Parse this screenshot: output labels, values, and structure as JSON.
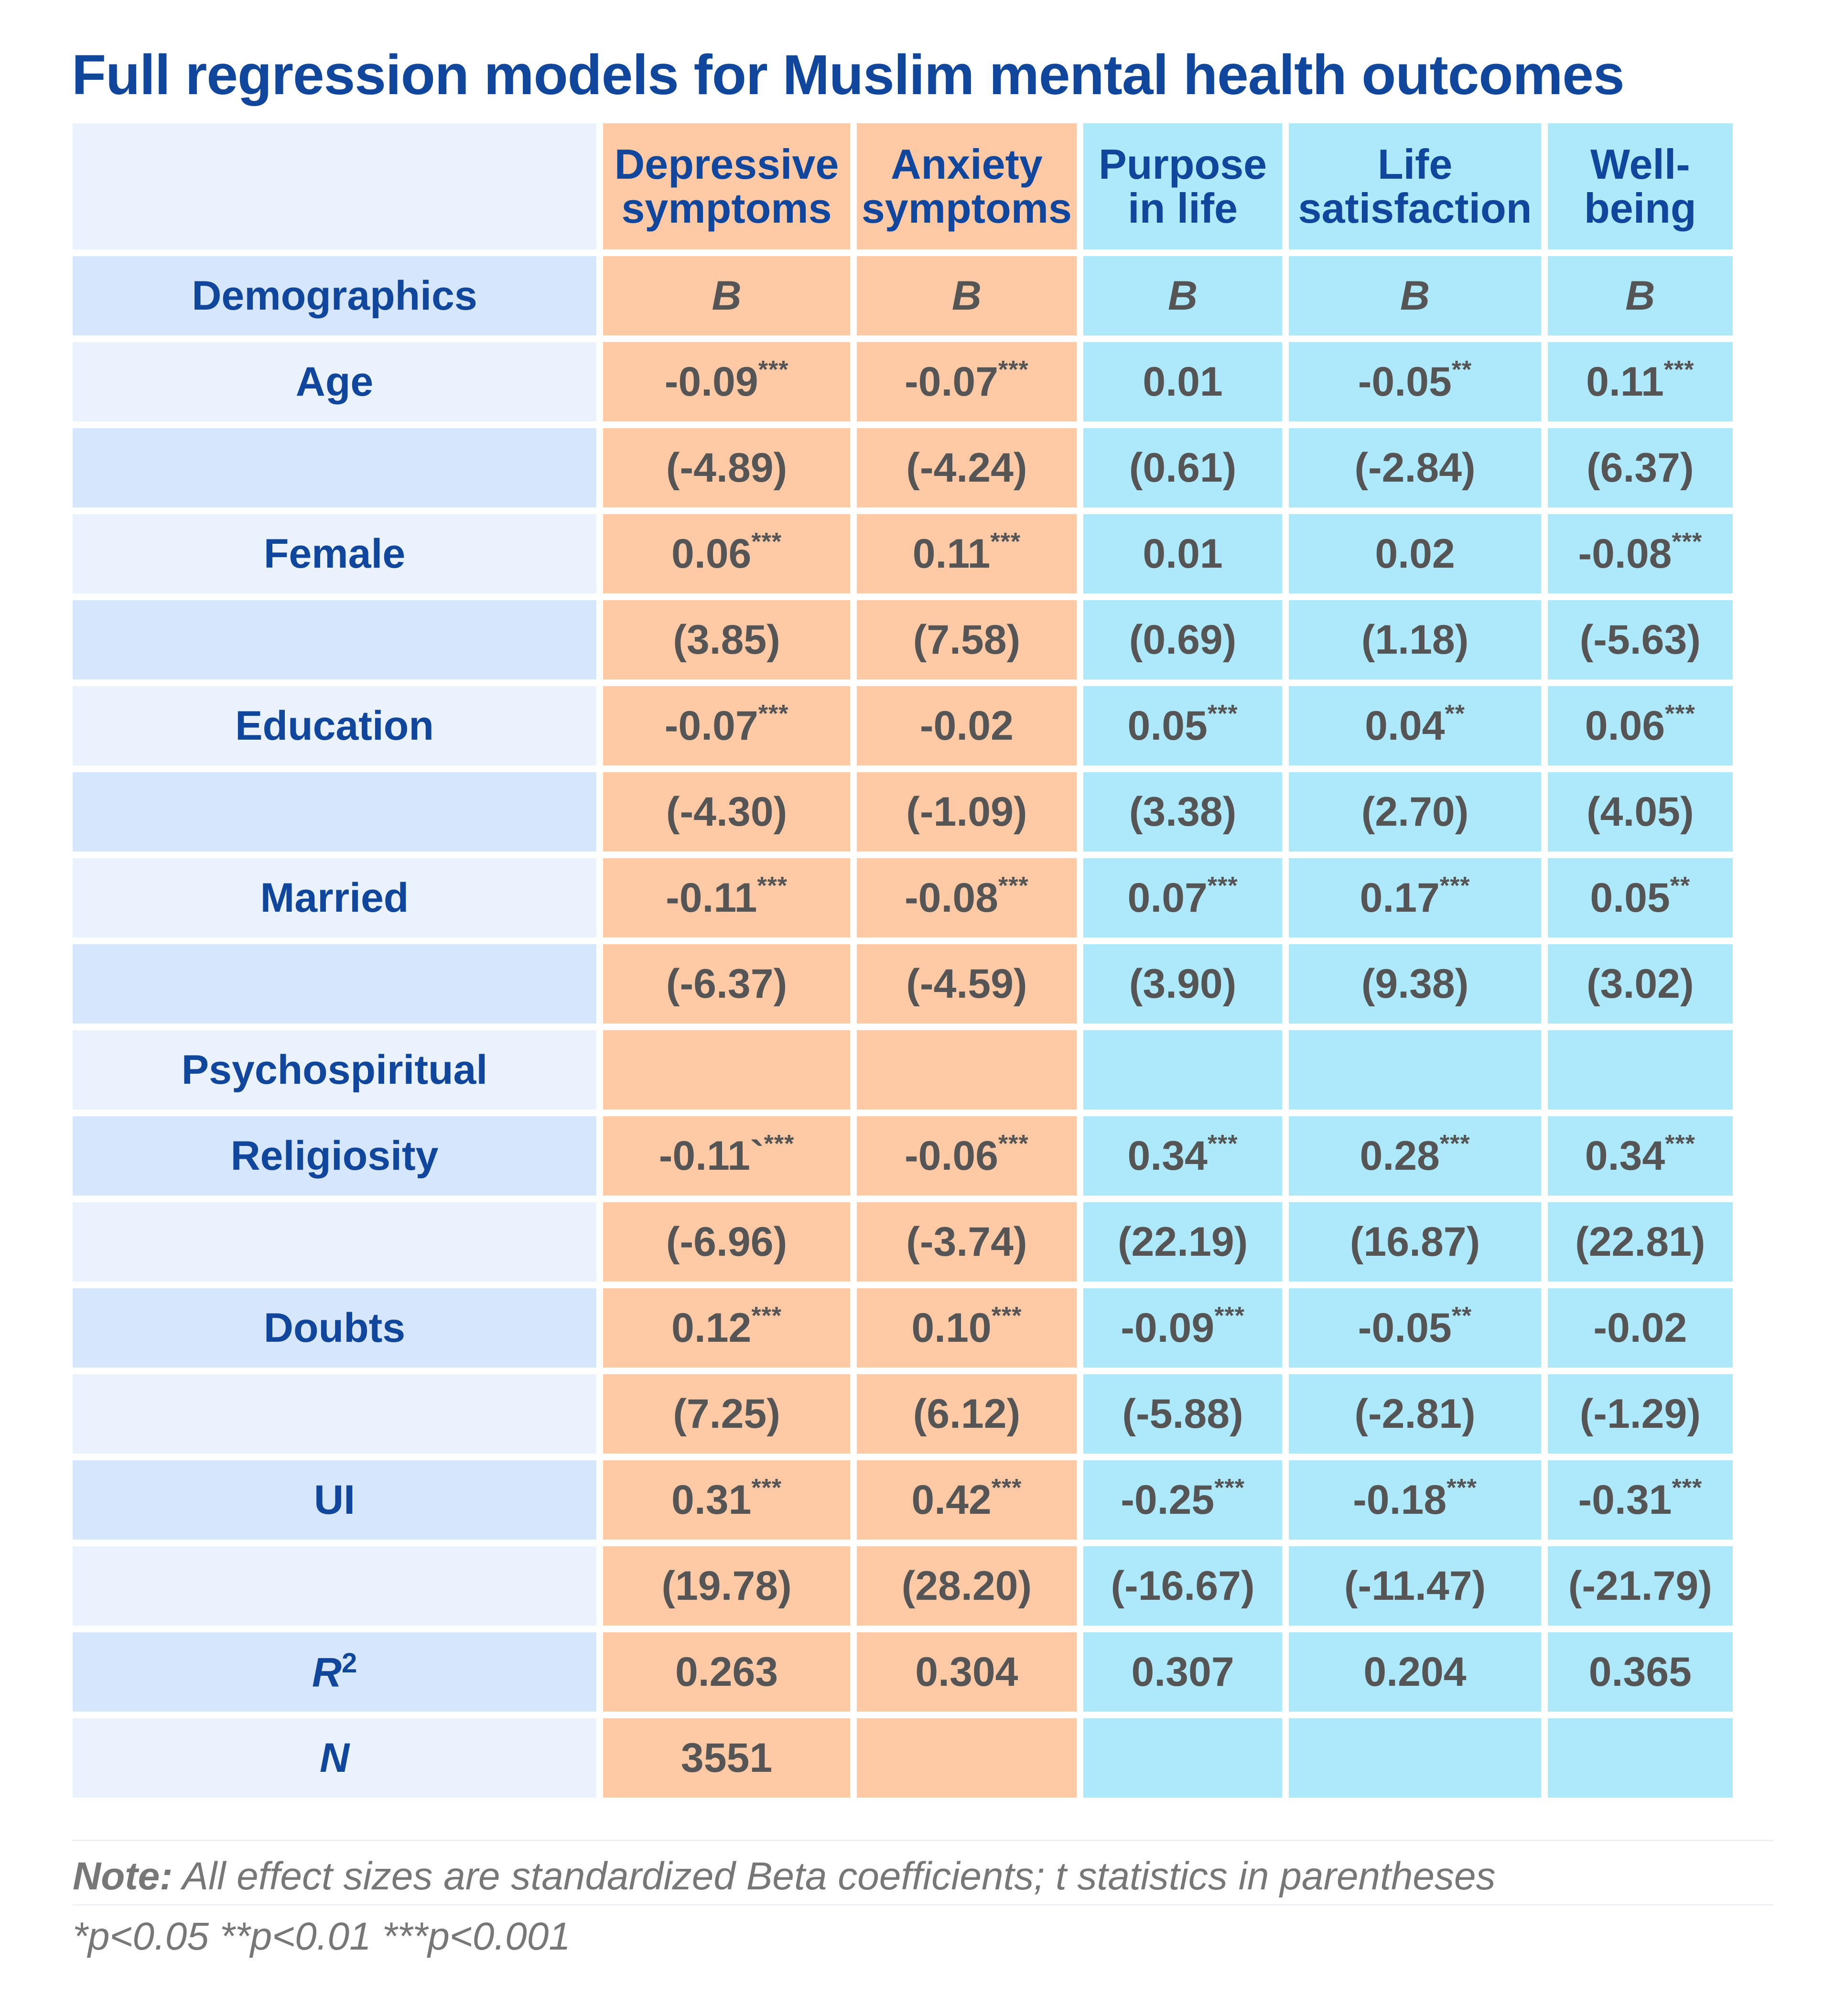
{
  "title": "Full regression models for Muslim mental health outcomes",
  "columns": [
    {
      "line1": "Depressive",
      "line2": "symptoms"
    },
    {
      "line1": "Anxiety",
      "line2": "symptoms"
    },
    {
      "line1": "Purpose",
      "line2": "in life"
    },
    {
      "line1": "Life",
      "line2": "satisfaction"
    },
    {
      "line1": "Well-",
      "line2": "being"
    }
  ],
  "section_demographics": "Demographics",
  "section_psychospiritual": "Psychospiritual",
  "b_label": "B",
  "rows": {
    "age": {
      "label": "Age",
      "coef": [
        [
          "-0.09",
          "***"
        ],
        [
          "-0.07",
          "***"
        ],
        [
          "0.01",
          ""
        ],
        [
          "-0.05",
          "**"
        ],
        [
          "0.11",
          "***"
        ]
      ],
      "t": [
        "(-4.89)",
        "(-4.24)",
        "(0.61)",
        "(-2.84)",
        "(6.37)"
      ]
    },
    "female": {
      "label": "Female",
      "coef": [
        [
          "0.06",
          "***"
        ],
        [
          "0.11",
          "***"
        ],
        [
          "0.01",
          ""
        ],
        [
          "0.02",
          ""
        ],
        [
          "-0.08",
          "***"
        ]
      ],
      "t": [
        "(3.85)",
        "(7.58)",
        "(0.69)",
        "(1.18)",
        "(-5.63)"
      ]
    },
    "education": {
      "label": "Education",
      "coef": [
        [
          "-0.07",
          "***"
        ],
        [
          "-0.02",
          ""
        ],
        [
          "0.05",
          "***"
        ],
        [
          "0.04",
          "**"
        ],
        [
          "0.06",
          "***"
        ]
      ],
      "t": [
        "(-4.30)",
        "(-1.09)",
        "(3.38)",
        "(2.70)",
        "(4.05)"
      ]
    },
    "married": {
      "label": "Married",
      "coef": [
        [
          "-0.11",
          "***"
        ],
        [
          "-0.08",
          "***"
        ],
        [
          "0.07",
          "***"
        ],
        [
          "0.17",
          "***"
        ],
        [
          "0.05",
          "**"
        ]
      ],
      "t": [
        "(-6.37)",
        "(-4.59)",
        "(3.90)",
        "(9.38)",
        "(3.02)"
      ]
    },
    "religiosity": {
      "label": "Religiosity",
      "coef": [
        [
          "-0.11`",
          "***"
        ],
        [
          "-0.06",
          "***"
        ],
        [
          "0.34",
          "***"
        ],
        [
          "0.28",
          "***"
        ],
        [
          "0.34",
          "***"
        ]
      ],
      "t": [
        "(-6.96)",
        "(-3.74)",
        "(22.19)",
        "(16.87)",
        "(22.81)"
      ]
    },
    "doubts": {
      "label": "Doubts",
      "coef": [
        [
          "0.12",
          "***"
        ],
        [
          "0.10",
          "***"
        ],
        [
          "-0.09",
          "***"
        ],
        [
          "-0.05",
          "**"
        ],
        [
          "-0.02",
          ""
        ]
      ],
      "t": [
        "(7.25)",
        "(6.12)",
        "(-5.88)",
        "(-2.81)",
        "(-1.29)"
      ]
    },
    "ui": {
      "label": "UI",
      "coef": [
        [
          "0.31",
          "***"
        ],
        [
          "0.42",
          "***"
        ],
        [
          "-0.25",
          "***"
        ],
        [
          "-0.18",
          "***"
        ],
        [
          "-0.31",
          "***"
        ]
      ],
      "t": [
        "(19.78)",
        "(28.20)",
        "(-16.67)",
        "(-11.47)",
        "(-21.79)"
      ]
    }
  },
  "r2": {
    "label": "R",
    "sup": "2",
    "values": [
      "0.263",
      "0.304",
      "0.307",
      "0.204",
      "0.365"
    ]
  },
  "n": {
    "label": "N",
    "values": [
      "3551",
      "",
      "",
      "",
      ""
    ]
  },
  "note_bold": "Note:",
  "note_text": " All effect sizes are standardized Beta coefficients; t statistics in parentheses",
  "significance": "*p<0.05 **p<0.01 ***p<0.001",
  "colors": {
    "title": "#10479c",
    "orange": "#fdcaa5",
    "cyan": "#ade8fb",
    "label_light": "#eaf2fd",
    "label_dark": "#d5e6fd",
    "value": "#555555"
  }
}
